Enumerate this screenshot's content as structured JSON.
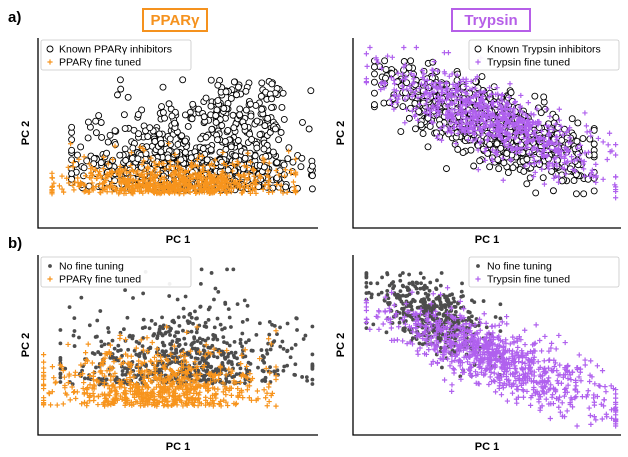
{
  "figure": {
    "row_labels": [
      "a)",
      "b)"
    ],
    "column_titles": [
      {
        "text": "PPARγ",
        "color": "#f5921e"
      },
      {
        "text": "Trypsin",
        "color": "#b65fe8"
      }
    ]
  },
  "colors": {
    "orange": "#f7941d",
    "purple": "#b061ee",
    "dark_gray": "#4d4d4d",
    "axis": "#000000"
  },
  "chart_data": [
    {
      "type": "scatter",
      "panel": "a-left",
      "xlabel": "PC 1",
      "ylabel": "PC 2",
      "xlim": [
        0,
        100
      ],
      "ylim": [
        0,
        100
      ],
      "ticks": "none",
      "grid": false,
      "legend_position": "top-left",
      "series": [
        {
          "name": "Known PPARγ inhibitors",
          "marker": "open-circle",
          "color": "#000000",
          "count": 900,
          "seed": 11,
          "cluster": {
            "x_range": [
              12,
              98
            ],
            "y_mode": 20,
            "y_range": [
              4,
              78
            ],
            "upper_tail_x": [
              60,
              88
            ],
            "upper_tail_y": [
              50,
              78
            ]
          }
        },
        {
          "name": "PPARγ fine tuned",
          "marker": "plus",
          "color": "#f7941d",
          "count": 700,
          "seed": 12,
          "cluster": {
            "x_range": [
              5,
              92
            ],
            "y_mode": 18,
            "y_range": [
              6,
              45
            ]
          }
        }
      ]
    },
    {
      "type": "scatter",
      "panel": "a-right",
      "xlabel": "PC 1",
      "ylabel": "PC 2",
      "xlim": [
        0,
        100
      ],
      "ylim": [
        0,
        100
      ],
      "ticks": "none",
      "grid": false,
      "legend_position": "top-right",
      "series": [
        {
          "name": "Known Trypsin inhibitors",
          "marker": "open-circle",
          "color": "#000000",
          "count": 900,
          "seed": 21,
          "cluster": {
            "x_range": [
              8,
              90
            ],
            "slope": -0.55,
            "y_center": 55,
            "y_range": [
              18,
              88
            ]
          }
        },
        {
          "name": "Trypsin fine tuned",
          "marker": "plus",
          "color": "#b061ee",
          "count": 800,
          "seed": 22,
          "cluster": {
            "x_range": [
              5,
              98
            ],
            "slope": -0.55,
            "y_center": 58,
            "y_range": [
              15,
              95
            ]
          }
        }
      ]
    },
    {
      "type": "scatter",
      "panel": "b-left",
      "xlabel": "PC 1",
      "ylabel": "PC 2",
      "xlim": [
        0,
        100
      ],
      "ylim": [
        0,
        100
      ],
      "ticks": "none",
      "grid": false,
      "legend_position": "top-left",
      "series": [
        {
          "name": "No fine tuning",
          "marker": "filled-circle",
          "color": "#4d4d4d",
          "count": 650,
          "seed": 31,
          "cluster": {
            "x_range": [
              8,
              98
            ],
            "y_mode": 28,
            "y_range": [
              5,
              92
            ]
          }
        },
        {
          "name": "PPARγ fine tuned",
          "marker": "plus",
          "color": "#f7941d",
          "count": 700,
          "seed": 32,
          "cluster": {
            "x_range": [
              2,
              85
            ],
            "y_mode": 16,
            "y_range": [
              3,
              60
            ]
          }
        }
      ]
    },
    {
      "type": "scatter",
      "panel": "b-right",
      "xlabel": "PC 1",
      "ylabel": "PC 2",
      "xlim": [
        0,
        100
      ],
      "ylim": [
        0,
        100
      ],
      "ticks": "none",
      "grid": false,
      "legend_position": "top-right",
      "series": [
        {
          "name": "No fine tuning",
          "marker": "filled-circle",
          "color": "#4d4d4d",
          "count": 450,
          "seed": 41,
          "cluster": {
            "x_range": [
              5,
              55
            ],
            "slope": -0.55,
            "y_center": 55,
            "y_range": [
              25,
              90
            ]
          }
        },
        {
          "name": "Trypsin fine tuned",
          "marker": "plus",
          "color": "#b061ee",
          "count": 850,
          "seed": 42,
          "cluster": {
            "x_range": [
              5,
              98
            ],
            "slope": -0.55,
            "y_center": 45,
            "y_range": [
              5,
              85
            ]
          }
        }
      ]
    }
  ]
}
